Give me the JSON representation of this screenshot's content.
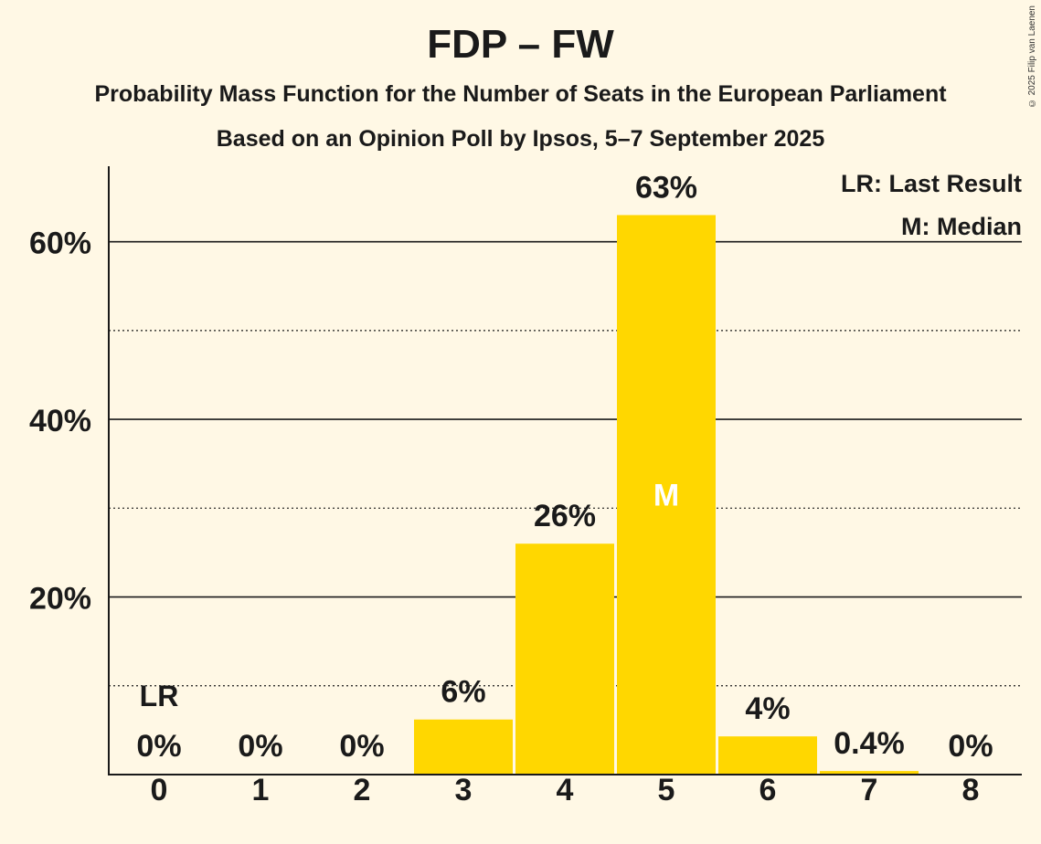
{
  "chart_data": {
    "type": "bar",
    "title": "FDP – FW",
    "subtitle": "Probability Mass Function for the Number of Seats in the European Parliament",
    "subtitle2": "Based on an Opinion Poll by Ipsos, 5–7 September 2025",
    "copyright": "© 2025 Filip van Laenen",
    "categories": [
      "0",
      "1",
      "2",
      "3",
      "4",
      "5",
      "6",
      "7",
      "8"
    ],
    "values": [
      0,
      0,
      0,
      6.2,
      26,
      63,
      4.3,
      0.4,
      0
    ],
    "value_labels": [
      "0%",
      "0%",
      "0%",
      "6%",
      "26%",
      "63%",
      "4%",
      "0.4%",
      "0%"
    ],
    "ylim": [
      0,
      68.5
    ],
    "yticks": [
      20,
      40,
      60
    ],
    "ytick_labels": [
      "20%",
      "40%",
      "60%"
    ],
    "minor_gridlines": [
      10,
      30,
      50
    ],
    "last_result_index": 0,
    "last_result_marker": "LR",
    "median_index": 5,
    "median_marker": "M",
    "legend": [
      "LR: Last Result",
      "M: Median"
    ],
    "bar_color": "#FFD700",
    "background_color": "#FFF8E5",
    "xlabel": "",
    "ylabel": ""
  }
}
